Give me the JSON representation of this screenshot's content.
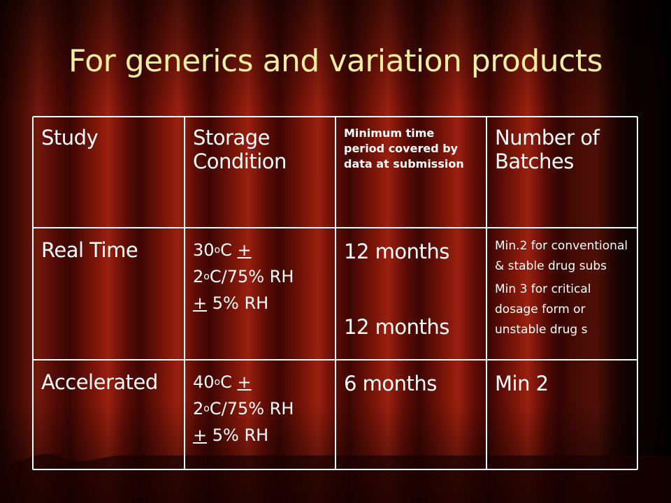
{
  "title": "For generics and variation products",
  "table": {
    "rows": [
      [
        "Study",
        "Storage Condition",
        "Minimum time period covered by data at submission",
        "Number of Batches"
      ],
      [
        "Real Time",
        [
          "30",
          "o",
          "C ",
          "+",
          "2",
          "o",
          "C/75% RH",
          "+",
          " 5% RH"
        ],
        [
          "12 months",
          "12 months"
        ],
        [
          "Min.2 for conventional & stable drug subs",
          "Min 3 for critical dosage form or unstable drug s"
        ]
      ],
      [
        "Accelerated",
        [
          "40",
          "o",
          "C ",
          "+",
          "2",
          "o",
          "C/75% RH",
          "+",
          " 5% RH"
        ],
        "6 months",
        "Min 2"
      ]
    ]
  }
}
